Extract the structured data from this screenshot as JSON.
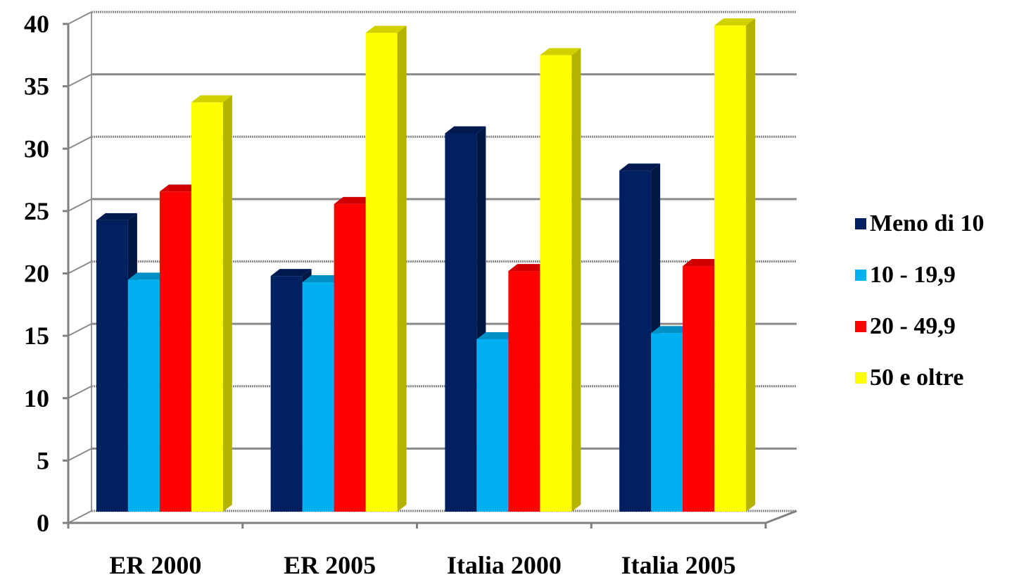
{
  "chart_data": {
    "type": "bar",
    "title": "",
    "xlabel": "",
    "ylabel": "",
    "categories": [
      "ER 2000",
      "ER 2005",
      "Italia 2000",
      "Italia 2005"
    ],
    "ylim": [
      0,
      40
    ],
    "yticks": [
      "0",
      "5",
      "10",
      "15",
      "20",
      "25",
      "30",
      "35",
      "40"
    ],
    "grid": true,
    "legend_position": "right",
    "series": [
      {
        "name": "Meno di 10",
        "color": "#002060",
        "values": [
          23.5,
          19,
          30.5,
          27.5
        ]
      },
      {
        "name": "10 - 19,9",
        "color": "#00B0F0",
        "values": [
          18.7,
          18.5,
          13.9,
          14.4
        ]
      },
      {
        "name": "20 - 49,9",
        "color": "#FF0000",
        "values": [
          25.8,
          24.8,
          19.4,
          19.8
        ]
      },
      {
        "name": "50 e oltre",
        "color": "#FFFF00",
        "values": [
          33,
          38.6,
          36.8,
          39.2
        ]
      }
    ]
  }
}
